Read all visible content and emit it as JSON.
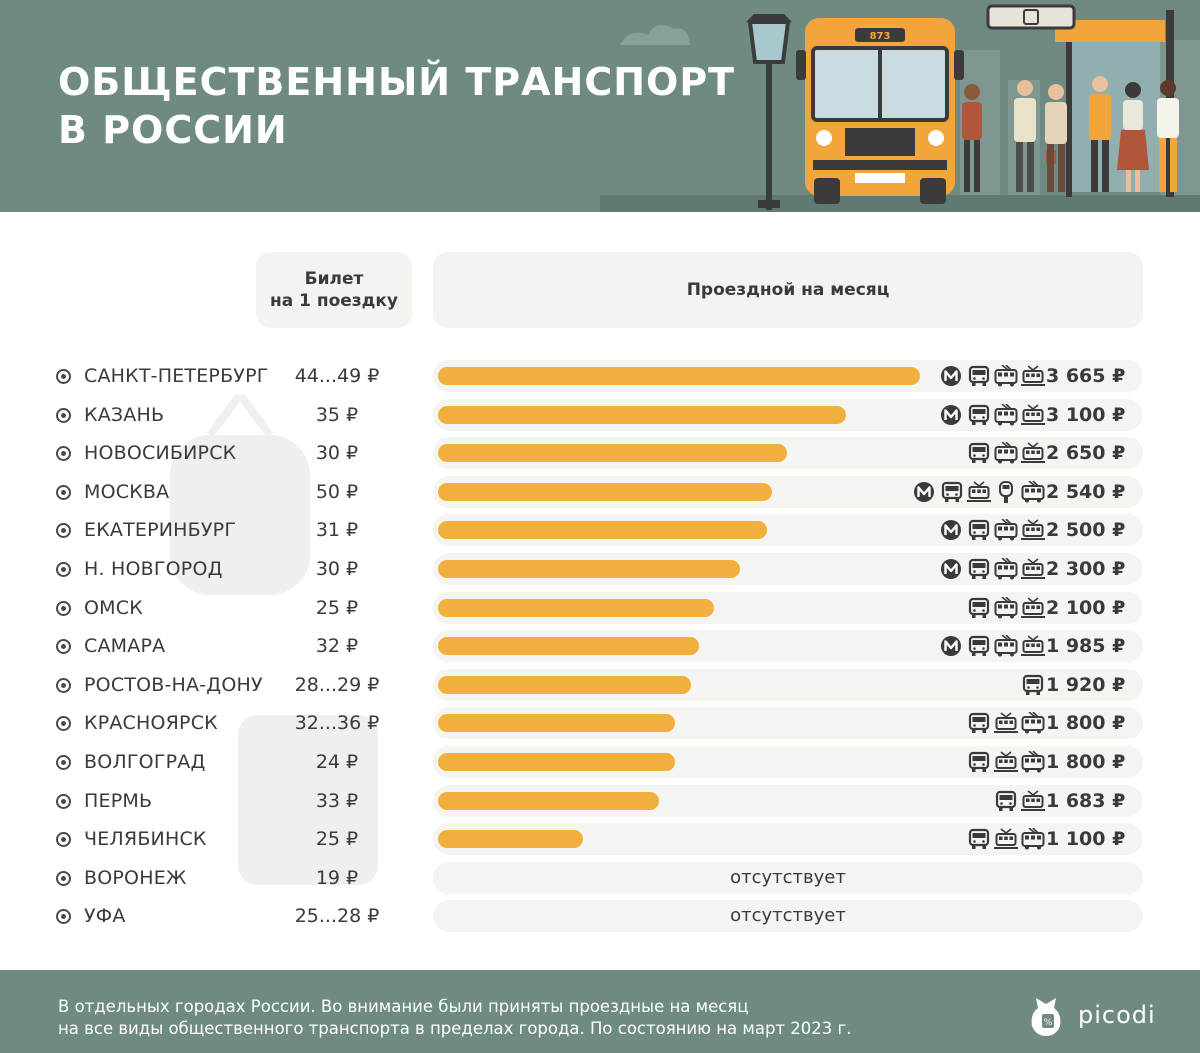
{
  "header": {
    "title_line1": "ОБЩЕСТВЕННЫЙ ТРАНСПОРТ",
    "title_line2": "В РОССИИ",
    "background_color": "#6e8a83",
    "bus_number": "873"
  },
  "columns": {
    "ticket_line1": "Билет",
    "ticket_line2": "на 1 поездку",
    "monthly_pass": "Проездной на месяц"
  },
  "chart_data": {
    "type": "bar",
    "bar_color": "#f1b03e",
    "xlim": [
      0,
      3665
    ],
    "rows": [
      {
        "city": "САНКТ-ПЕТЕРБУРГ",
        "ticket": "44...49 ₽",
        "value": 3665,
        "label": "3 665 ₽",
        "modes": [
          "metro-icon",
          "bus-icon",
          "trolleybus-icon",
          "tram-icon"
        ]
      },
      {
        "city": "КАЗАНЬ",
        "ticket": "35 ₽",
        "value": 3100,
        "label": "3 100 ₽",
        "modes": [
          "metro-icon",
          "bus-icon",
          "trolleybus-icon",
          "tram-icon"
        ]
      },
      {
        "city": "НОВОСИБИРСК",
        "ticket": "30 ₽",
        "value": 2650,
        "label": "2 650 ₽",
        "modes": [
          "bus-icon",
          "trolleybus-icon",
          "tram-icon"
        ]
      },
      {
        "city": "МОСКВА",
        "ticket": "50 ₽",
        "value": 2540,
        "label": "2 540 ₽",
        "modes": [
          "metro-icon",
          "bus-icon",
          "tram-icon",
          "monorail-icon",
          "trolleybus-icon"
        ]
      },
      {
        "city": "ЕКАТЕРИНБУРГ",
        "ticket": "31 ₽",
        "value": 2500,
        "label": "2 500 ₽",
        "modes": [
          "metro-icon",
          "bus-icon",
          "trolleybus-icon",
          "tram-icon"
        ]
      },
      {
        "city": "Н. НОВГОРОД",
        "ticket": "30 ₽",
        "value": 2300,
        "label": "2 300 ₽",
        "modes": [
          "metro-icon",
          "bus-icon",
          "trolleybus-icon",
          "tram-icon"
        ]
      },
      {
        "city": "ОМСК",
        "ticket": "25 ₽",
        "value": 2100,
        "label": "2 100 ₽",
        "modes": [
          "bus-icon",
          "trolleybus-icon",
          "tram-icon"
        ]
      },
      {
        "city": "САМАРА",
        "ticket": "32 ₽",
        "value": 1985,
        "label": "1 985 ₽",
        "modes": [
          "metro-icon",
          "bus-icon",
          "trolleybus-icon",
          "tram-icon"
        ]
      },
      {
        "city": "РОСТОВ-НА-ДОНУ",
        "ticket": "28...29 ₽",
        "value": 1920,
        "label": "1 920 ₽",
        "modes": [
          "bus-icon"
        ]
      },
      {
        "city": "КРАСНОЯРСК",
        "ticket": "32...36 ₽",
        "value": 1800,
        "label": "1 800 ₽",
        "modes": [
          "bus-icon",
          "tram-icon",
          "trolleybus-icon"
        ]
      },
      {
        "city": "ВОЛГОГРАД",
        "ticket": "24 ₽",
        "value": 1800,
        "label": "1 800 ₽",
        "modes": [
          "bus-icon",
          "tram-icon",
          "trolleybus-icon"
        ]
      },
      {
        "city": "ПЕРМЬ",
        "ticket": "33 ₽",
        "value": 1683,
        "label": "1 683 ₽",
        "modes": [
          "bus-icon",
          "tram-icon"
        ]
      },
      {
        "city": "ЧЕЛЯБИНСК",
        "ticket": "25 ₽",
        "value": 1100,
        "label": "1 100 ₽",
        "modes": [
          "bus-icon",
          "tram-icon",
          "trolleybus-icon"
        ]
      },
      {
        "city": "ВОРОНЕЖ",
        "ticket": "19 ₽",
        "value": null,
        "absent": "отсутствует",
        "modes": []
      },
      {
        "city": "УФА",
        "ticket": "25...28 ₽",
        "value": null,
        "absent": "отсутствует",
        "modes": []
      }
    ]
  },
  "footer": {
    "note_line1": "В отдельных городах России. Во внимание были приняты проездные на месяц",
    "note_line2": "на все виды общественного транспорта в пределах города. По состоянию на март 2023 г.",
    "brand": "picodi",
    "background_color": "#6e8a83"
  }
}
